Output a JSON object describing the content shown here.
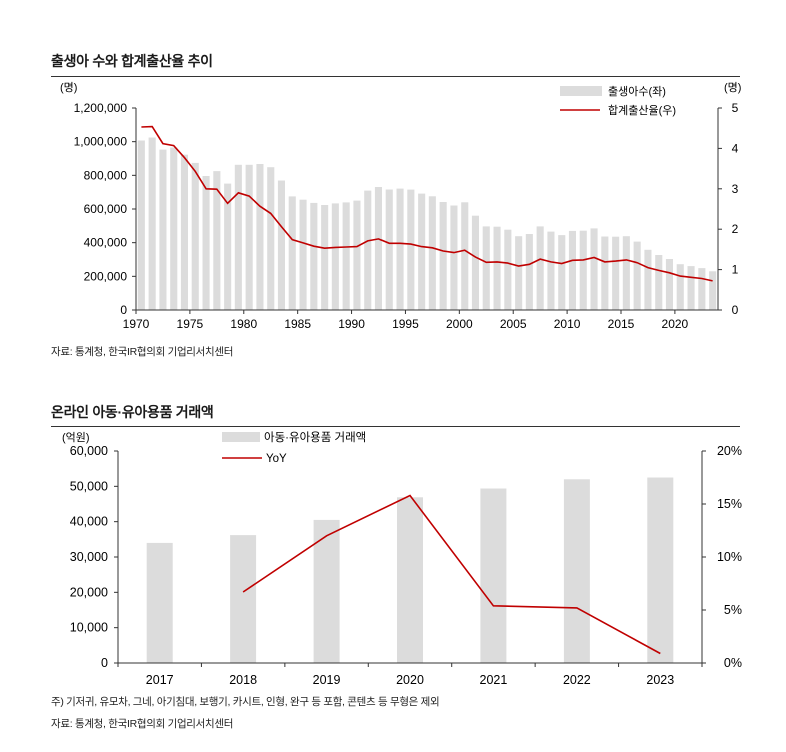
{
  "chart1": {
    "title": "출생아 수와 합계출산율 추이",
    "source": "자료: 통계청, 한국IR협의회 기업리서치센터",
    "chart_data": {
      "type": "bar",
      "left_unit": "(명)",
      "right_unit": "(명)",
      "ylim_left": [
        0,
        1200000
      ],
      "ylim_right": [
        0,
        5
      ],
      "left_ticks": [
        "0",
        "200,000",
        "400,000",
        "600,000",
        "800,000",
        "1,000,000",
        "1,200,000"
      ],
      "right_ticks": [
        "0",
        "1",
        "2",
        "3",
        "4",
        "5"
      ],
      "x_ticks": [
        "1970",
        "1975",
        "1980",
        "1985",
        "1990",
        "1995",
        "2000",
        "2005",
        "2010",
        "2015",
        "2020"
      ],
      "bar_color": "#dcdcdc",
      "line_color": "#c00000",
      "series": [
        {
          "name": "출생아수(좌)",
          "axis": "left",
          "x": [
            1970,
            1971,
            1972,
            1973,
            1974,
            1975,
            1976,
            1977,
            1978,
            1979,
            1980,
            1981,
            1982,
            1983,
            1984,
            1985,
            1986,
            1987,
            1988,
            1989,
            1990,
            1991,
            1992,
            1993,
            1994,
            1995,
            1996,
            1997,
            1998,
            1999,
            2000,
            2001,
            2002,
            2003,
            2004,
            2005,
            2006,
            2007,
            2008,
            2009,
            2010,
            2011,
            2012,
            2013,
            2014,
            2015,
            2016,
            2017,
            2018,
            2019,
            2020,
            2021,
            2022,
            2023
          ],
          "values": [
            1006645,
            1024773,
            952780,
            965521,
            922823,
            874030,
            796331,
            825339,
            750728,
            862669,
            862835,
            867409,
            848312,
            769155,
            674793,
            655489,
            636019,
            623831,
            633092,
            639431,
            649738,
            709275,
            730678,
            715826,
            721185,
            715020,
            691226,
            675394,
            641594,
            620668,
            640089,
            559934,
            496911,
            495036,
            476958,
            438707,
            451759,
            496822,
            465892,
            444849,
            470171,
            471265,
            484550,
            436455,
            435435,
            438420,
            406243,
            357771,
            326822,
            302676,
            272337,
            260562,
            249186,
            230028
          ]
        },
        {
          "name": "합계출산율(우)",
          "axis": "right",
          "x": [
            1970,
            1971,
            1972,
            1973,
            1974,
            1975,
            1976,
            1977,
            1978,
            1979,
            1980,
            1981,
            1982,
            1983,
            1984,
            1985,
            1986,
            1987,
            1988,
            1989,
            1990,
            1991,
            1992,
            1993,
            1994,
            1995,
            1996,
            1997,
            1998,
            1999,
            2000,
            2001,
            2002,
            2003,
            2004,
            2005,
            2006,
            2007,
            2008,
            2009,
            2010,
            2011,
            2012,
            2013,
            2014,
            2015,
            2016,
            2017,
            2018,
            2019,
            2020,
            2021,
            2022,
            2023
          ],
          "values": [
            4.53,
            4.54,
            4.12,
            4.07,
            3.77,
            3.43,
            3.0,
            2.99,
            2.64,
            2.9,
            2.82,
            2.57,
            2.39,
            2.06,
            1.74,
            1.66,
            1.58,
            1.53,
            1.55,
            1.56,
            1.57,
            1.71,
            1.76,
            1.65,
            1.65,
            1.63,
            1.57,
            1.54,
            1.46,
            1.42,
            1.48,
            1.31,
            1.18,
            1.19,
            1.16,
            1.09,
            1.13,
            1.26,
            1.19,
            1.15,
            1.23,
            1.24,
            1.3,
            1.19,
            1.21,
            1.24,
            1.17,
            1.05,
            0.98,
            0.92,
            0.84,
            0.81,
            0.78,
            0.72
          ]
        }
      ]
    }
  },
  "chart2": {
    "title": "온라인 아동·유아용품 거래액",
    "footnote": "주) 기저귀, 유모차, 그네, 아기침대, 보행기, 카시트, 인형, 완구 등 포함, 콘텐츠 등 무형은 제외",
    "source": "자료: 통계청, 한국IR협의회 기업리서치센터",
    "chart_data": {
      "type": "bar",
      "left_unit": "(억원)",
      "ylim_left": [
        0,
        60000
      ],
      "ylim_right": [
        0,
        20
      ],
      "left_ticks": [
        "0",
        "10,000",
        "20,000",
        "30,000",
        "40,000",
        "50,000",
        "60,000"
      ],
      "right_ticks": [
        "0%",
        "5%",
        "10%",
        "15%",
        "20%"
      ],
      "categories": [
        "2017",
        "2018",
        "2019",
        "2020",
        "2021",
        "2022",
        "2023"
      ],
      "bar_color": "#dcdcdc",
      "line_color": "#c00000",
      "series": [
        {
          "name": "아동·유아용품 거래액",
          "axis": "left",
          "values": [
            34000,
            36200,
            40500,
            46900,
            49400,
            52000,
            52500
          ]
        },
        {
          "name": "YoY",
          "axis": "right",
          "values": [
            null,
            6.7,
            12.0,
            15.8,
            5.4,
            5.2,
            0.9
          ]
        }
      ]
    }
  }
}
